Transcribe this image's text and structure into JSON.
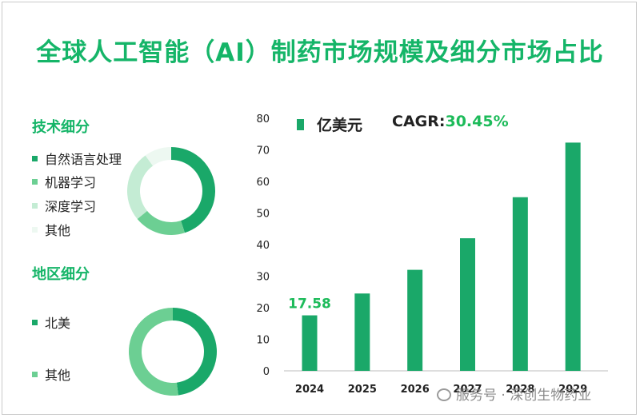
{
  "title": "全球人工智能（AI）制药市场规模及细分市场占比",
  "tech_section": {
    "title": "技术细分",
    "items": [
      {
        "label": "自然语言处理",
        "color": "#1aa869",
        "share": 45
      },
      {
        "label": "机器学习",
        "color": "#6ccf93",
        "share": 19
      },
      {
        "label": "深度学习",
        "color": "#c4ecd4",
        "share": 26
      },
      {
        "label": "其他",
        "color": "#edf8f1",
        "share": 10
      }
    ]
  },
  "region_section": {
    "title": "地区细分",
    "items": [
      {
        "label": "北美",
        "color": "#1aa869",
        "share": 48
      },
      {
        "label": "其他",
        "color": "#6ccf93",
        "share": 52
      }
    ]
  },
  "legend": {
    "unit_label": "亿美元",
    "cagr_label": "CAGR:",
    "cagr_value": "30.45%"
  },
  "watermark": {
    "text": "服务号 · 深创生物药业"
  },
  "chart_data": {
    "type": "bar",
    "categories": [
      "2024",
      "2025",
      "2026",
      "2027",
      "2028",
      "2029"
    ],
    "values": [
      17.58,
      24.5,
      32.0,
      42.0,
      55.0,
      72.3
    ],
    "data_labels": [
      "17.58",
      "",
      "",
      "",
      "",
      ""
    ],
    "ylim": [
      0,
      80
    ],
    "yticks": [
      0,
      10,
      20,
      30,
      40,
      50,
      60,
      70,
      80
    ],
    "ylabel": "亿美元",
    "xlabel": "",
    "bar_color": "#1aa869",
    "label_color": "#1dbb5a"
  }
}
